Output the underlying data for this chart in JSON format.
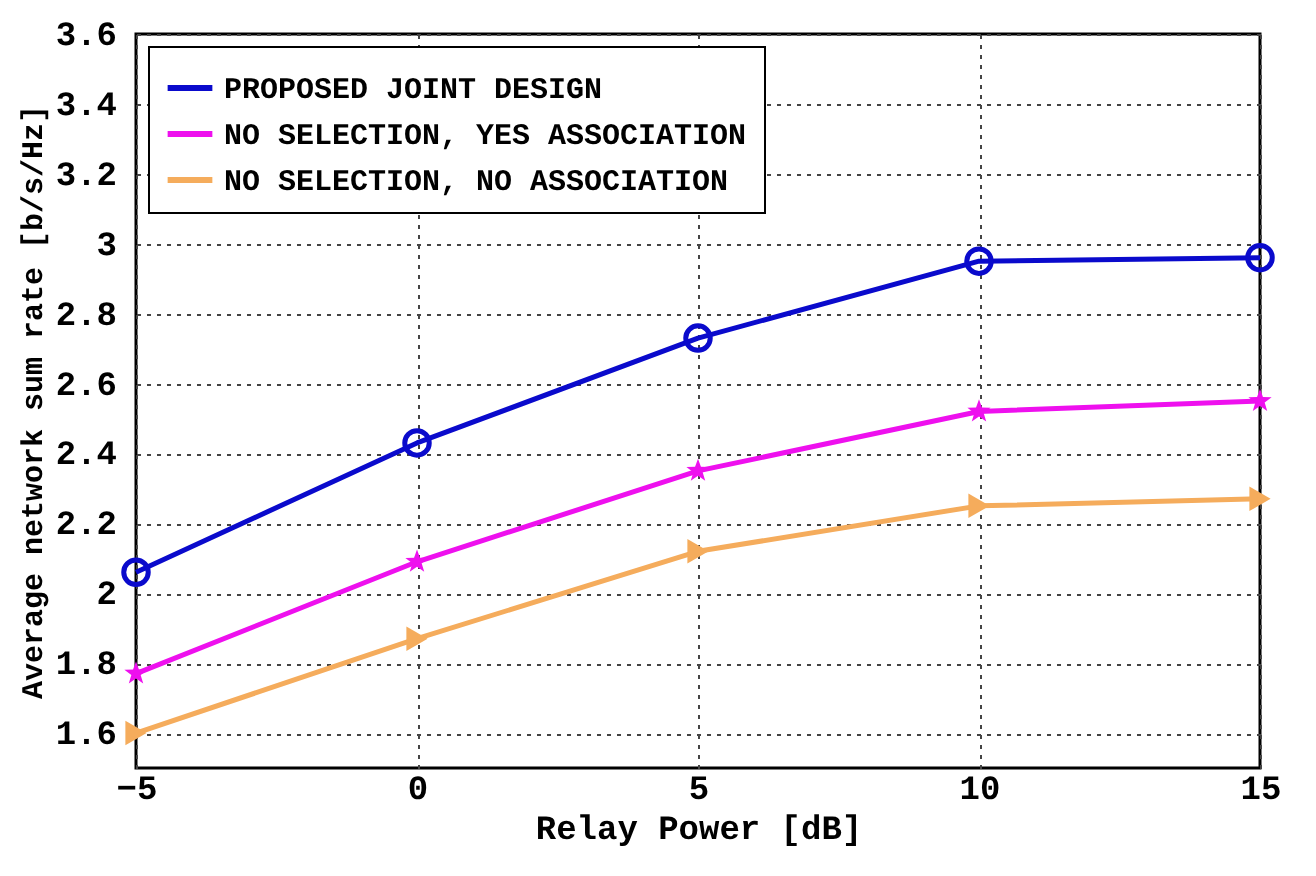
{
  "chart_data": {
    "type": "line",
    "xlabel": "Relay Power [dB]",
    "ylabel": "Average network sum rate [b/s/Hz]",
    "x": [
      -5,
      0,
      5,
      10,
      15
    ],
    "series": [
      {
        "name": "PROPOSED JOINT DESIGN",
        "color": "#0a0acc",
        "marker": "circle",
        "values": [
          2.06,
          2.43,
          2.73,
          2.95,
          2.96
        ]
      },
      {
        "name": "NO SELECTION, YES ASSOCIATION",
        "color": "#ee10ee",
        "marker": "star",
        "values": [
          1.77,
          2.09,
          2.35,
          2.52,
          2.55
        ]
      },
      {
        "name": "NO SELECTION, NO ASSOCIATION",
        "color": "#f5ac5c",
        "marker": "triangle",
        "values": [
          1.6,
          1.87,
          2.12,
          2.25,
          2.27
        ]
      }
    ],
    "xlim": [
      -5,
      15
    ],
    "xticks": [
      -5,
      0,
      5,
      10,
      15
    ],
    "ylim": [
      1.5,
      3.6
    ],
    "yticks": [
      1.6,
      1.8,
      2,
      2.2,
      2.4,
      2.6,
      2.8,
      3,
      3.2,
      3.4,
      3.6
    ],
    "grid": true,
    "legend": "top left",
    "line_style": "solid"
  }
}
